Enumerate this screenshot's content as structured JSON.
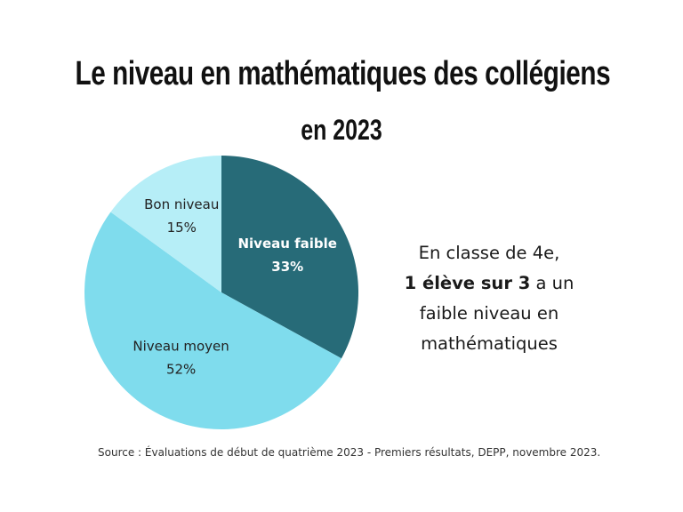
{
  "chart_data": {
    "type": "pie",
    "title": "Le niveau en mathématiques des collégiens",
    "subtitle": "en 2023",
    "slices": [
      {
        "label": "Niveau faible",
        "value": 33,
        "value_label": "33%",
        "color": "#276b78",
        "label_color": "#ffffff",
        "label_bold": true
      },
      {
        "label": "Niveau moyen",
        "value": 52,
        "value_label": "52%",
        "color": "#7fdced",
        "label_color": "#222222",
        "label_bold": false
      },
      {
        "label": "Bon niveau",
        "value": 15,
        "value_label": "15%",
        "color": "#b6eef7",
        "label_color": "#222222",
        "label_bold": false
      }
    ]
  },
  "callout": {
    "line1": "En classe de 4e,",
    "line2_bold": "1 élève sur 3",
    "line2_rest": " a un",
    "line3": "faible niveau en",
    "line4": "mathématiques"
  },
  "source": "Source : Évaluations de début de quatrième 2023 - Premiers résultats, DEPP, novembre 2023."
}
